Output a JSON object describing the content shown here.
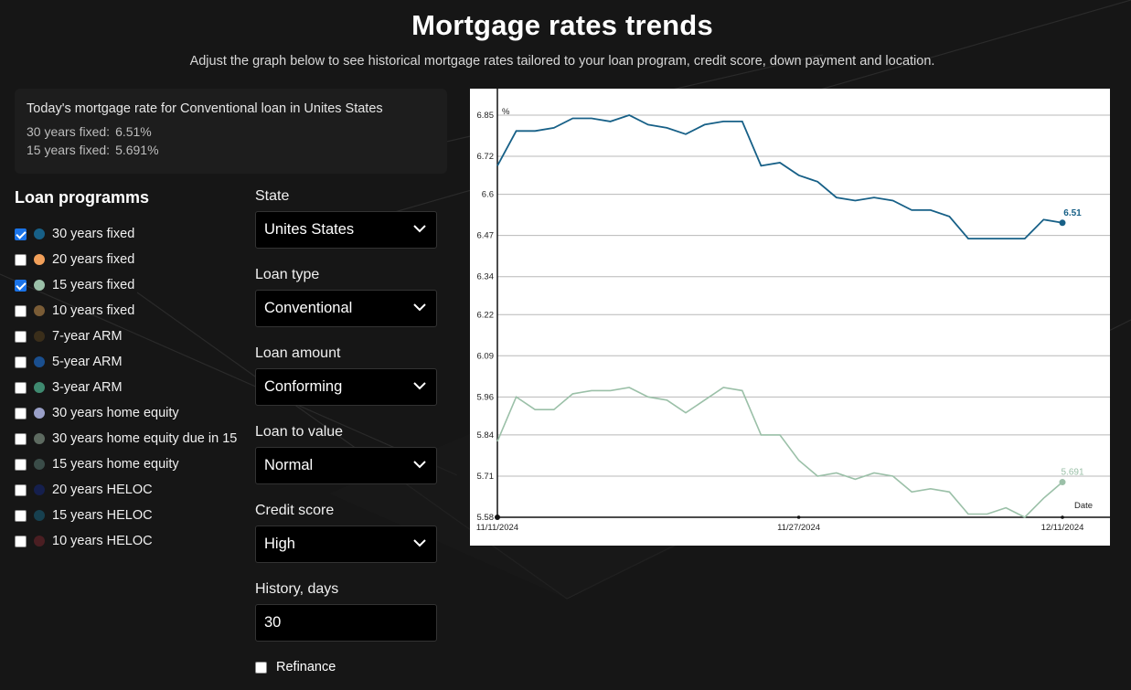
{
  "header": {
    "title": "Mortgage rates trends",
    "subtitle": "Adjust the graph below to see historical mortgage rates tailored to your loan program, credit score, down payment and location."
  },
  "today": {
    "title": "Today's mortgage rate for Conventional loan in Unites States",
    "rows": [
      {
        "label": "30 years fixed:",
        "value": "6.51%"
      },
      {
        "label": "15 years fixed:",
        "value": "5.691%"
      }
    ]
  },
  "programs": {
    "title": "Loan programms",
    "items": [
      {
        "label": "30 years fixed",
        "checked": true,
        "color": "#176087"
      },
      {
        "label": "20 years fixed",
        "checked": false,
        "color": "#f2a05a"
      },
      {
        "label": "15 years fixed",
        "checked": true,
        "color": "#9bc0a8"
      },
      {
        "label": "10 years fixed",
        "checked": false,
        "color": "#7a5c36"
      },
      {
        "label": "7-year ARM",
        "checked": false,
        "color": "#3a2e1a"
      },
      {
        "label": "5-year ARM",
        "checked": false,
        "color": "#1a4f8f"
      },
      {
        "label": "3-year ARM",
        "checked": false,
        "color": "#3f8a70"
      },
      {
        "label": "30 years home equity",
        "checked": false,
        "color": "#9aa0c8"
      },
      {
        "label": "30 years home equity due in 15",
        "checked": false,
        "color": "#5d6a60"
      },
      {
        "label": "15 years home equity",
        "checked": false,
        "color": "#3a4c48"
      },
      {
        "label": "20 years HELOC",
        "checked": false,
        "color": "#151f4d"
      },
      {
        "label": "15 years HELOC",
        "checked": false,
        "color": "#17404f"
      },
      {
        "label": "10 years HELOC",
        "checked": false,
        "color": "#4a1e22"
      }
    ]
  },
  "filters": {
    "state": {
      "label": "State",
      "value": "Unites States"
    },
    "loan_type": {
      "label": "Loan type",
      "value": "Conventional"
    },
    "loan_amount": {
      "label": "Loan amount",
      "value": "Conforming"
    },
    "ltv": {
      "label": "Loan to value",
      "value": "Normal"
    },
    "credit": {
      "label": "Credit score",
      "value": "High"
    },
    "history": {
      "label": "History, days",
      "value": "30"
    },
    "refinance": {
      "label": "Refinance",
      "checked": false
    }
  },
  "chart_data": {
    "type": "line",
    "ylabel": "%",
    "xlabel": "Date",
    "ylim": [
      5.58,
      6.85
    ],
    "y_ticks": [
      "5.58",
      "5.71",
      "5.84",
      "5.96",
      "6.09",
      "6.22",
      "6.34",
      "6.47",
      "6.6",
      "6.72",
      "6.85"
    ],
    "x_ticks": [
      "11/11/2024",
      "11/27/2024",
      "12/11/2024"
    ],
    "grid": true,
    "series": [
      {
        "color": "#176087",
        "end_label": "6.51",
        "values": [
          6.69,
          6.8,
          6.8,
          6.81,
          6.84,
          6.84,
          6.83,
          6.85,
          6.82,
          6.81,
          6.79,
          6.82,
          6.83,
          6.83,
          6.69,
          6.7,
          6.66,
          6.64,
          6.59,
          6.58,
          6.59,
          6.58,
          6.55,
          6.55,
          6.53,
          6.46,
          6.46,
          6.46,
          6.46,
          6.52,
          6.51
        ]
      },
      {
        "color": "#9bc0a8",
        "end_label": "5.691",
        "values": [
          5.82,
          5.96,
          5.92,
          5.92,
          5.97,
          5.98,
          5.98,
          5.99,
          5.96,
          5.95,
          5.91,
          5.95,
          5.99,
          5.98,
          5.84,
          5.84,
          5.76,
          5.71,
          5.72,
          5.7,
          5.72,
          5.71,
          5.66,
          5.67,
          5.66,
          5.59,
          5.59,
          5.61,
          5.58,
          5.64,
          5.691
        ]
      }
    ]
  }
}
